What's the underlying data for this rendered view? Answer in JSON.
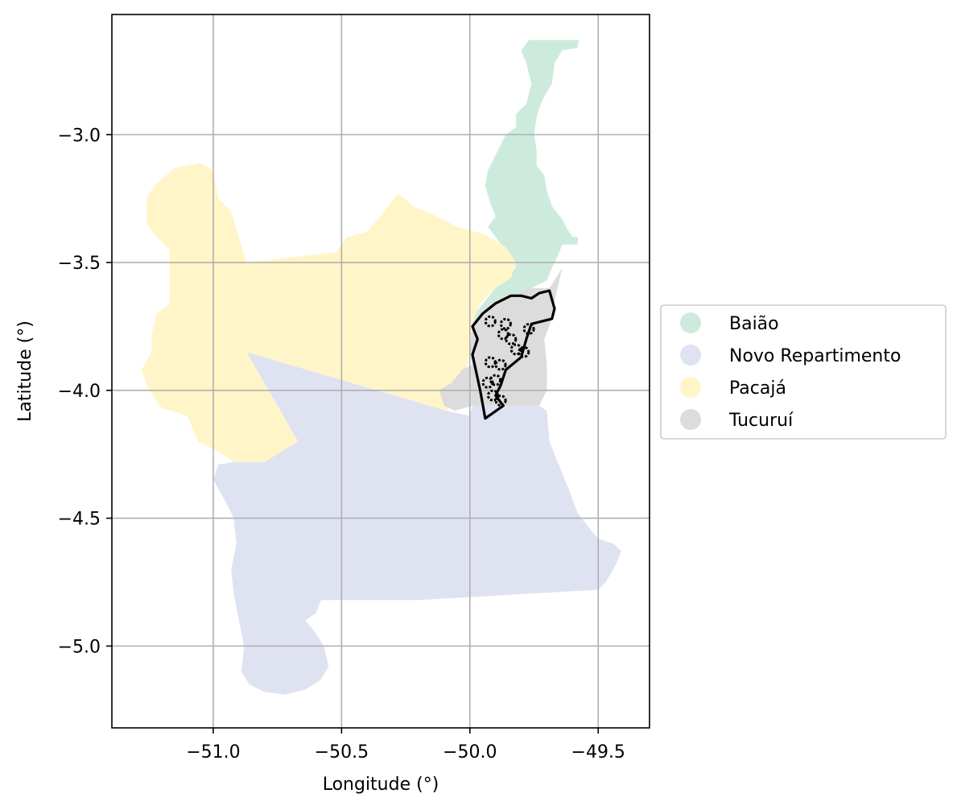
{
  "chart_data": {
    "type": "map",
    "xlabel": "Longitude (°)",
    "ylabel": "Latitude (°)",
    "xlim": [
      -51.395,
      -49.3
    ],
    "ylim": [
      -5.32,
      -2.53
    ],
    "xticks": [
      -51.0,
      -50.5,
      -50.0,
      -49.5
    ],
    "yticks": [
      -3.0,
      -3.5,
      -4.0,
      -4.5,
      -5.0
    ],
    "xtick_labels": [
      "−51.0",
      "−50.5",
      "−50.0",
      "−49.5"
    ],
    "ytick_labels": [
      "−3.0",
      "−3.5",
      "−4.0",
      "−4.5",
      "−5.0"
    ],
    "grid": true,
    "legend_position": "right",
    "regions": [
      {
        "name": "Baião",
        "color": "#cdebdc",
        "polygon": [
          [
            -49.77,
            -2.63
          ],
          [
            -49.575,
            -2.63
          ],
          [
            -49.58,
            -2.66
          ],
          [
            -49.64,
            -2.67
          ],
          [
            -49.67,
            -2.72
          ],
          [
            -49.68,
            -2.8
          ],
          [
            -49.72,
            -2.87
          ],
          [
            -49.74,
            -2.93
          ],
          [
            -49.75,
            -3.0
          ],
          [
            -49.74,
            -3.06
          ],
          [
            -49.74,
            -3.12
          ],
          [
            -49.71,
            -3.16
          ],
          [
            -49.7,
            -3.22
          ],
          [
            -49.68,
            -3.28
          ],
          [
            -49.64,
            -3.33
          ],
          [
            -49.62,
            -3.37
          ],
          [
            -49.6,
            -3.4
          ],
          [
            -49.58,
            -3.4
          ],
          [
            -49.58,
            -3.43
          ],
          [
            -49.64,
            -3.43
          ],
          [
            -49.66,
            -3.48
          ],
          [
            -49.68,
            -3.52
          ],
          [
            -49.7,
            -3.57
          ],
          [
            -49.76,
            -3.6
          ],
          [
            -49.83,
            -3.62
          ],
          [
            -49.92,
            -3.66
          ],
          [
            -49.96,
            -3.7
          ],
          [
            -49.99,
            -3.74
          ],
          [
            -49.98,
            -3.7
          ],
          [
            -49.94,
            -3.65
          ],
          [
            -49.9,
            -3.6
          ],
          [
            -49.86,
            -3.55
          ],
          [
            -49.82,
            -3.52
          ],
          [
            -49.84,
            -3.48
          ],
          [
            -49.87,
            -3.44
          ],
          [
            -49.9,
            -3.4
          ],
          [
            -49.93,
            -3.36
          ],
          [
            -49.9,
            -3.32
          ],
          [
            -49.92,
            -3.27
          ],
          [
            -49.94,
            -3.2
          ],
          [
            -49.93,
            -3.14
          ],
          [
            -49.9,
            -3.08
          ],
          [
            -49.86,
            -3.0
          ],
          [
            -49.82,
            -2.97
          ],
          [
            -49.82,
            -2.92
          ],
          [
            -49.78,
            -2.88
          ],
          [
            -49.76,
            -2.8
          ],
          [
            -49.78,
            -2.72
          ],
          [
            -49.8,
            -2.67
          ]
        ]
      },
      {
        "name": "Novo Repartimento",
        "color": "#dfe3f1",
        "polygon": [
          [
            -50.87,
            -3.85
          ],
          [
            -50.09,
            -4.08
          ],
          [
            -50.0,
            -4.1
          ],
          [
            -49.99,
            -4.06
          ],
          [
            -49.88,
            -4.06
          ],
          [
            -49.8,
            -4.06
          ],
          [
            -49.73,
            -4.06
          ],
          [
            -49.7,
            -4.08
          ],
          [
            -49.69,
            -4.2
          ],
          [
            -49.65,
            -4.3
          ],
          [
            -49.61,
            -4.4
          ],
          [
            -49.58,
            -4.48
          ],
          [
            -49.55,
            -4.52
          ],
          [
            -49.5,
            -4.58
          ],
          [
            -49.44,
            -4.6
          ],
          [
            -49.41,
            -4.63
          ],
          [
            -49.43,
            -4.68
          ],
          [
            -49.47,
            -4.75
          ],
          [
            -49.5,
            -4.78
          ],
          [
            -50.2,
            -4.82
          ],
          [
            -50.58,
            -4.82
          ],
          [
            -50.6,
            -4.87
          ],
          [
            -50.64,
            -4.9
          ],
          [
            -50.6,
            -4.95
          ],
          [
            -50.57,
            -5.0
          ],
          [
            -50.55,
            -5.08
          ],
          [
            -50.58,
            -5.13
          ],
          [
            -50.64,
            -5.17
          ],
          [
            -50.72,
            -5.19
          ],
          [
            -50.8,
            -5.18
          ],
          [
            -50.86,
            -5.15
          ],
          [
            -50.89,
            -5.1
          ],
          [
            -50.88,
            -5.0
          ],
          [
            -50.9,
            -4.9
          ],
          [
            -50.92,
            -4.8
          ],
          [
            -50.93,
            -4.7
          ],
          [
            -50.91,
            -4.6
          ],
          [
            -50.92,
            -4.5
          ],
          [
            -50.96,
            -4.42
          ],
          [
            -51.0,
            -4.35
          ],
          [
            -50.98,
            -4.29
          ],
          [
            -50.92,
            -4.28
          ],
          [
            -50.8,
            -4.28
          ],
          [
            -50.67,
            -4.2
          ]
        ]
      },
      {
        "name": "Pacajá",
        "color": "#fff5c9",
        "polygon": [
          [
            -51.15,
            -3.13
          ],
          [
            -51.05,
            -3.11
          ],
          [
            -51.0,
            -3.14
          ],
          [
            -50.98,
            -3.25
          ],
          [
            -50.93,
            -3.3
          ],
          [
            -50.9,
            -3.4
          ],
          [
            -50.87,
            -3.5
          ],
          [
            -50.52,
            -3.46
          ],
          [
            -50.48,
            -3.4
          ],
          [
            -50.4,
            -3.38
          ],
          [
            -50.35,
            -3.32
          ],
          [
            -50.28,
            -3.23
          ],
          [
            -50.22,
            -3.28
          ],
          [
            -50.15,
            -3.31
          ],
          [
            -50.05,
            -3.36
          ],
          [
            -49.94,
            -3.39
          ],
          [
            -49.86,
            -3.44
          ],
          [
            -49.82,
            -3.5
          ],
          [
            -49.84,
            -3.56
          ],
          [
            -49.9,
            -3.6
          ],
          [
            -49.96,
            -3.66
          ],
          [
            -49.99,
            -3.74
          ],
          [
            -50.0,
            -3.85
          ],
          [
            -50.02,
            -3.95
          ],
          [
            -50.09,
            -4.08
          ],
          [
            -50.87,
            -3.85
          ],
          [
            -50.67,
            -4.2
          ],
          [
            -50.8,
            -4.28
          ],
          [
            -50.92,
            -4.28
          ],
          [
            -50.98,
            -4.24
          ],
          [
            -51.06,
            -4.2
          ],
          [
            -51.1,
            -4.1
          ],
          [
            -51.2,
            -4.07
          ],
          [
            -51.25,
            -4.0
          ],
          [
            -51.28,
            -3.92
          ],
          [
            -51.24,
            -3.85
          ],
          [
            -51.24,
            -3.78
          ],
          [
            -51.22,
            -3.7
          ],
          [
            -51.17,
            -3.66
          ],
          [
            -51.17,
            -3.45
          ],
          [
            -51.22,
            -3.4
          ],
          [
            -51.26,
            -3.35
          ],
          [
            -51.26,
            -3.25
          ],
          [
            -51.23,
            -3.2
          ]
        ]
      },
      {
        "name": "Tucuruí",
        "color": "#dcdcdc",
        "polygon": [
          [
            -49.64,
            -3.52
          ],
          [
            -49.67,
            -3.57
          ],
          [
            -49.69,
            -3.6
          ],
          [
            -49.76,
            -3.6
          ],
          [
            -49.83,
            -3.62
          ],
          [
            -49.92,
            -3.66
          ],
          [
            -49.96,
            -3.7
          ],
          [
            -49.99,
            -3.74
          ],
          [
            -50.0,
            -3.85
          ],
          [
            -49.99,
            -3.9
          ],
          [
            -50.03,
            -3.92
          ],
          [
            -50.07,
            -3.97
          ],
          [
            -50.12,
            -4.0
          ],
          [
            -50.1,
            -4.06
          ],
          [
            -50.06,
            -4.08
          ],
          [
            -49.99,
            -4.06
          ],
          [
            -49.88,
            -4.06
          ],
          [
            -49.8,
            -4.06
          ],
          [
            -49.73,
            -4.06
          ],
          [
            -49.7,
            -4.0
          ],
          [
            -49.7,
            -3.9
          ],
          [
            -49.71,
            -3.8
          ],
          [
            -49.68,
            -3.72
          ],
          [
            -49.67,
            -3.65
          ]
        ]
      }
    ],
    "outline": {
      "color": "#000000",
      "polygon": [
        [
          -49.69,
          -3.61
        ],
        [
          -49.67,
          -3.68
        ],
        [
          -49.68,
          -3.72
        ],
        [
          -49.76,
          -3.74
        ],
        [
          -49.78,
          -3.8
        ],
        [
          -49.8,
          -3.87
        ],
        [
          -49.86,
          -3.92
        ],
        [
          -49.88,
          -3.98
        ],
        [
          -49.9,
          -4.02
        ],
        [
          -49.87,
          -4.06
        ],
        [
          -49.94,
          -4.11
        ],
        [
          -49.96,
          -4.0
        ],
        [
          -49.99,
          -3.86
        ],
        [
          -49.97,
          -3.8
        ],
        [
          -49.99,
          -3.75
        ],
        [
          -49.95,
          -3.7
        ],
        [
          -49.9,
          -3.66
        ],
        [
          -49.84,
          -3.63
        ],
        [
          -49.8,
          -3.63
        ],
        [
          -49.76,
          -3.64
        ],
        [
          -49.73,
          -3.62
        ]
      ]
    },
    "outline_inner_blobs": [
      [
        -49.92,
        -3.73
      ],
      [
        -49.86,
        -3.74
      ],
      [
        -49.87,
        -3.78
      ],
      [
        -49.84,
        -3.8
      ],
      [
        -49.77,
        -3.76
      ],
      [
        -49.82,
        -3.84
      ],
      [
        -49.79,
        -3.85
      ],
      [
        -49.88,
        -3.9
      ],
      [
        -49.92,
        -3.89
      ],
      [
        -49.9,
        -3.96
      ],
      [
        -49.93,
        -3.97
      ],
      [
        -49.91,
        -4.02
      ],
      [
        -49.88,
        -4.04
      ]
    ]
  }
}
